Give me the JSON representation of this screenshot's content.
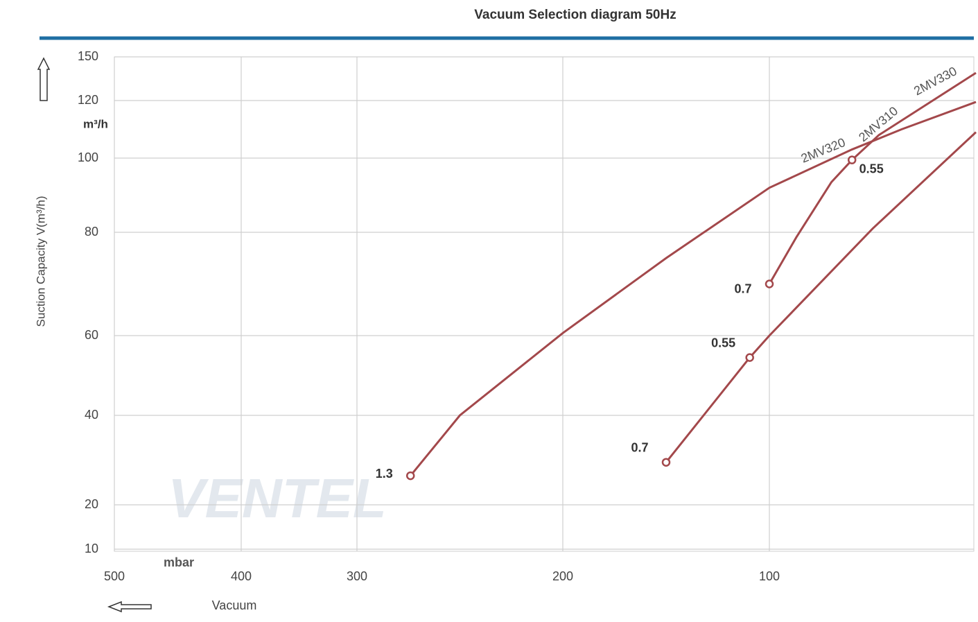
{
  "chart_data": {
    "type": "line",
    "title": "Vacuum Selection diagram 50Hz",
    "y_label": "Suction Capacity V(m³/h)",
    "y_unit": "m³/h",
    "x_unit": "mbar",
    "x_label": "Vacuum",
    "watermark": "VENTEL",
    "xlim": [
      500,
      0
    ],
    "xticks": [
      500,
      400,
      300,
      200,
      100
    ],
    "ylim": [
      10,
      150
    ],
    "yticks": [
      10,
      20,
      40,
      60,
      80,
      100,
      120,
      150
    ],
    "grid": true,
    "series": [
      {
        "name": "2MV320",
        "color": "#a3484b",
        "x": [
          274,
          250,
          200,
          150,
          100,
          60,
          36,
          0
        ],
        "values": [
          26.5,
          40,
          60.5,
          75,
          92,
          103,
          110,
          119.5
        ],
        "point_labels": [
          "1.3",
          null,
          null,
          null,
          null,
          null,
          null,
          null
        ]
      },
      {
        "name": "2MV330",
        "color": "#a3484b",
        "x": [
          100,
          87,
          70,
          60,
          47,
          0
        ],
        "values": [
          70,
          79,
          93.5,
          99.5,
          108,
          139
        ],
        "point_labels": [
          "0.7",
          null,
          null,
          "0.55",
          null,
          null
        ]
      },
      {
        "name": "2MV310",
        "color": "#a3484b",
        "x": [
          150,
          109.5,
          100,
          50,
          0
        ],
        "values": [
          29.5,
          54.5,
          60,
          81,
          109
        ],
        "point_labels": [
          "0.7",
          "0.55",
          null,
          null,
          null
        ]
      }
    ]
  }
}
